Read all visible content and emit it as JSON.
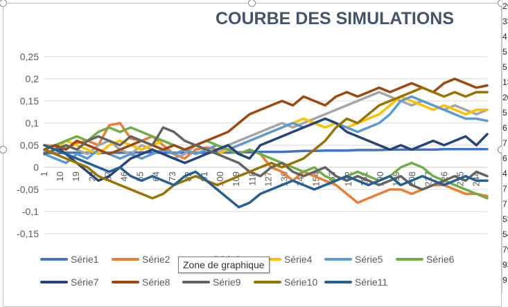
{
  "chart_data": {
    "type": "line",
    "title": "COURBE DES SIMULATIONS",
    "xlabel": "",
    "ylabel": "",
    "ylim": [
      -0.15,
      0.25
    ],
    "y_ticks": [
      "0,25",
      "0,2",
      "0,15",
      "0,1",
      "0,05",
      "0",
      "-0,05",
      "-0,1",
      "-0,15"
    ],
    "x_tick_labels": [
      "1",
      "10",
      "19",
      "28",
      "37",
      "46",
      "55",
      "64",
      "73",
      "82",
      "91",
      "100",
      "109",
      "118",
      "127",
      "136",
      "145",
      "154",
      "163",
      "172",
      "181",
      "190",
      "199",
      "208",
      "217",
      "226",
      "235",
      "244"
    ],
    "x_range": [
      1,
      250
    ],
    "grid": true,
    "legend_position": "bottom",
    "series": [
      {
        "name": "Série1",
        "color": "#4472C4",
        "values": [
          0.033,
          0.032,
          0.033,
          0.033,
          0.033,
          0.032,
          0.033,
          0.033,
          0.033,
          0.034,
          0.033,
          0.033,
          0.033,
          0.033,
          0.033,
          0.033,
          0.034,
          0.033,
          0.034,
          0.034,
          0.035,
          0.035,
          0.035,
          0.036,
          0.037,
          0.037,
          0.038,
          0.038,
          0.038,
          0.039,
          0.039,
          0.039,
          0.04,
          0.04,
          0.04,
          0.04,
          0.04,
          0.041,
          0.041,
          0.041,
          0.041,
          0.041
        ]
      },
      {
        "name": "Série2",
        "color": "#ED7D31",
        "values": [
          0.05,
          0.048,
          0.042,
          0.055,
          0.06,
          0.05,
          0.095,
          0.1,
          0.065,
          0.06,
          0.07,
          0.05,
          0.03,
          0.02,
          0.04,
          0.045,
          0.04,
          0.05,
          0.03,
          0.04,
          0.03,
          0.0,
          -0.01,
          -0.03,
          -0.01,
          -0.02,
          -0.03,
          -0.04,
          -0.06,
          -0.08,
          -0.07,
          -0.06,
          -0.05,
          -0.05,
          -0.06,
          -0.05,
          -0.04,
          -0.04,
          -0.05,
          -0.06,
          -0.06,
          -0.065
        ]
      },
      {
        "name": "Série3",
        "color": "#A5A5A5",
        "values": [
          0.04,
          0.03,
          0.05,
          0.04,
          0.03,
          0.05,
          0.06,
          0.04,
          0.03,
          0.05,
          0.04,
          0.03,
          0.02,
          0.03,
          0.05,
          0.04,
          0.03,
          0.05,
          0.06,
          0.07,
          0.08,
          0.09,
          0.1,
          0.09,
          0.1,
          0.11,
          0.12,
          0.13,
          0.14,
          0.15,
          0.16,
          0.17,
          0.16,
          0.15,
          0.14,
          0.15,
          0.14,
          0.13,
          0.14,
          0.13,
          0.12,
          0.13
        ]
      },
      {
        "name": "Série4",
        "color": "#FFC000",
        "values": [
          0.05,
          0.04,
          0.06,
          0.05,
          0.04,
          0.03,
          0.05,
          0.06,
          0.05,
          0.04,
          0.05,
          0.06,
          0.05,
          0.04,
          0.05,
          0.04,
          0.03,
          0.04,
          0.05,
          0.06,
          0.07,
          0.08,
          0.09,
          0.1,
          0.11,
          0.1,
          0.09,
          0.1,
          0.09,
          0.1,
          0.11,
          0.12,
          0.14,
          0.16,
          0.15,
          0.14,
          0.13,
          0.14,
          0.13,
          0.12,
          0.13,
          0.13
        ]
      },
      {
        "name": "Série5",
        "color": "#5B9BD5",
        "values": [
          0.03,
          0.02,
          0.01,
          0.03,
          0.02,
          0.04,
          0.03,
          0.02,
          0.03,
          0.02,
          0.03,
          0.04,
          0.03,
          0.04,
          0.03,
          0.04,
          0.05,
          0.04,
          0.05,
          0.06,
          0.07,
          0.08,
          0.09,
          0.1,
          0.09,
          0.1,
          0.11,
          0.1,
          0.09,
          0.08,
          0.09,
          0.1,
          0.12,
          0.15,
          0.16,
          0.15,
          0.14,
          0.13,
          0.12,
          0.11,
          0.11,
          0.105
        ]
      },
      {
        "name": "Série6",
        "color": "#70AD47",
        "values": [
          0.04,
          0.05,
          0.06,
          0.07,
          0.06,
          0.08,
          0.09,
          0.08,
          0.09,
          0.08,
          0.07,
          0.06,
          0.05,
          0.04,
          0.05,
          0.06,
          0.05,
          0.04,
          0.03,
          0.04,
          0.03,
          0.02,
          0.01,
          0.0,
          -0.01,
          0.0,
          -0.02,
          -0.03,
          -0.02,
          -0.01,
          -0.02,
          -0.03,
          -0.02,
          0.0,
          0.01,
          0.0,
          -0.02,
          -0.03,
          -0.04,
          -0.05,
          -0.06,
          -0.07
        ]
      },
      {
        "name": "Série7",
        "color": "#264478",
        "values": [
          0.04,
          0.05,
          0.03,
          0.01,
          -0.01,
          -0.03,
          -0.02,
          0.0,
          0.02,
          0.03,
          0.04,
          0.03,
          0.02,
          0.01,
          0.02,
          0.03,
          0.04,
          0.05,
          0.03,
          0.02,
          0.05,
          0.06,
          0.07,
          0.08,
          0.09,
          0.1,
          0.11,
          0.1,
          0.08,
          0.07,
          0.06,
          0.05,
          0.04,
          0.05,
          0.04,
          0.05,
          0.06,
          0.05,
          0.06,
          0.07,
          0.05,
          0.075
        ]
      },
      {
        "name": "Série8",
        "color": "#9E480E",
        "values": [
          0.04,
          0.05,
          0.04,
          0.06,
          0.05,
          0.04,
          0.03,
          0.04,
          0.05,
          0.06,
          0.05,
          0.04,
          0.05,
          0.04,
          0.05,
          0.06,
          0.07,
          0.08,
          0.1,
          0.12,
          0.13,
          0.14,
          0.15,
          0.14,
          0.16,
          0.15,
          0.14,
          0.16,
          0.17,
          0.16,
          0.17,
          0.18,
          0.17,
          0.18,
          0.19,
          0.18,
          0.17,
          0.19,
          0.2,
          0.19,
          0.18,
          0.185
        ]
      },
      {
        "name": "Série9",
        "color": "#636363",
        "values": [
          0.03,
          0.04,
          0.05,
          0.04,
          0.06,
          0.07,
          0.06,
          0.05,
          0.07,
          0.06,
          0.05,
          0.09,
          0.08,
          0.06,
          0.05,
          0.04,
          0.03,
          0.02,
          0.01,
          -0.01,
          -0.02,
          0.0,
          0.01,
          -0.01,
          -0.02,
          -0.01,
          0.0,
          -0.02,
          -0.03,
          -0.02,
          -0.03,
          -0.04,
          -0.03,
          -0.02,
          -0.04,
          -0.05,
          -0.04,
          -0.03,
          -0.02,
          -0.03,
          -0.01,
          -0.02
        ]
      },
      {
        "name": "Série10",
        "color": "#997300",
        "values": [
          0.04,
          0.03,
          0.02,
          0.01,
          0.0,
          -0.02,
          -0.03,
          -0.04,
          -0.05,
          -0.06,
          -0.07,
          -0.06,
          -0.04,
          -0.03,
          -0.02,
          -0.03,
          -0.04,
          -0.03,
          -0.02,
          -0.01,
          0.0,
          0.01,
          0.0,
          0.01,
          0.02,
          0.04,
          0.06,
          0.09,
          0.11,
          0.1,
          0.12,
          0.14,
          0.15,
          0.16,
          0.17,
          0.18,
          0.17,
          0.16,
          0.17,
          0.16,
          0.17,
          0.17
        ]
      },
      {
        "name": "Série11",
        "color": "#255E91",
        "values": [
          0.05,
          0.04,
          0.03,
          0.02,
          0.01,
          0.0,
          -0.01,
          0.0,
          -0.02,
          -0.03,
          -0.02,
          -0.03,
          -0.04,
          -0.02,
          -0.01,
          -0.03,
          -0.05,
          -0.07,
          -0.09,
          -0.08,
          -0.06,
          -0.05,
          -0.04,
          -0.03,
          -0.04,
          -0.05,
          -0.04,
          -0.03,
          -0.02,
          -0.03,
          -0.04,
          -0.03,
          -0.02,
          -0.04,
          -0.03,
          -0.02,
          -0.03,
          -0.04,
          -0.03,
          -0.02,
          -0.03,
          -0.03
        ]
      }
    ]
  },
  "tooltip": {
    "text": "Zone de graphique"
  },
  "right_sheet_strip": [
    "29",
    "33",
    "4",
    "5",
    "5",
    "13",
    "20",
    "5",
    "6",
    "7",
    "6",
    "4",
    "7",
    "7",
    "53",
    "54",
    "79",
    "93",
    "9"
  ]
}
